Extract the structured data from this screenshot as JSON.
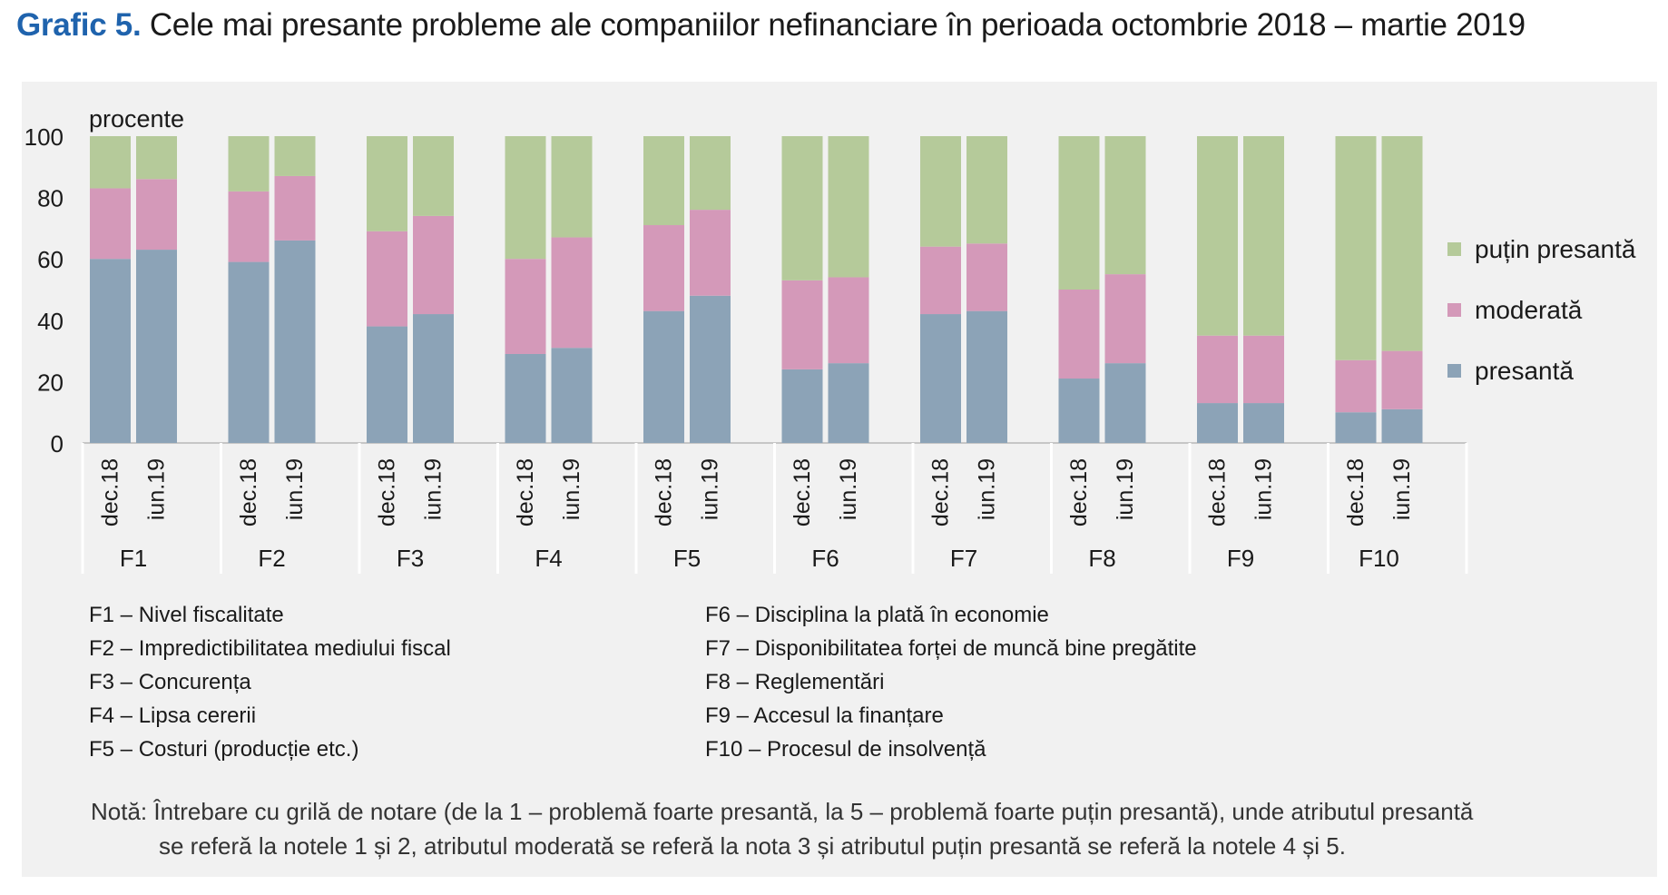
{
  "title": {
    "label": "Grafic 5.",
    "text": "Cele mai presante probleme ale companiilor nefinanciare în perioada octombrie 2018 – martie 2019"
  },
  "colors": {
    "presanta": "#8ca3b7",
    "moderata": "#d499b9",
    "putin_presanta": "#b5ca9a",
    "panel_bg": "#f1f1f1",
    "title_accent": "#1f63ad"
  },
  "chart_data": {
    "type": "bar",
    "stacked": true,
    "ylabel": "procente",
    "ylim": [
      0,
      100
    ],
    "yticks": [
      0,
      20,
      40,
      60,
      80,
      100
    ],
    "groups": [
      "F1",
      "F2",
      "F3",
      "F4",
      "F5",
      "F6",
      "F7",
      "F8",
      "F9",
      "F10"
    ],
    "periods": [
      "dec.18",
      "iun.19"
    ],
    "series": [
      {
        "name": "presantă",
        "values": [
          [
            60,
            63
          ],
          [
            59,
            66
          ],
          [
            38,
            42
          ],
          [
            29,
            31
          ],
          [
            43,
            48
          ],
          [
            24,
            26
          ],
          [
            42,
            43
          ],
          [
            21,
            26
          ],
          [
            13,
            13
          ],
          [
            10,
            11
          ]
        ]
      },
      {
        "name": "moderată",
        "values": [
          [
            23,
            23
          ],
          [
            23,
            21
          ],
          [
            31,
            32
          ],
          [
            31,
            36
          ],
          [
            28,
            28
          ],
          [
            29,
            28
          ],
          [
            22,
            22
          ],
          [
            29,
            29
          ],
          [
            22,
            22
          ],
          [
            17,
            19
          ]
        ]
      },
      {
        "name": "puțin presantă",
        "values": [
          [
            17,
            14
          ],
          [
            18,
            13
          ],
          [
            31,
            26
          ],
          [
            40,
            33
          ],
          [
            29,
            24
          ],
          [
            47,
            46
          ],
          [
            36,
            35
          ],
          [
            50,
            45
          ],
          [
            65,
            65
          ],
          [
            73,
            70
          ]
        ]
      }
    ],
    "legend_position": "right",
    "legend": [
      "puțin presantă",
      "moderată",
      "presantă"
    ]
  },
  "factors": [
    {
      "code": "F1",
      "text": "Nivel fiscalitate"
    },
    {
      "code": "F2",
      "text": "Impredictibilitatea mediului fiscal"
    },
    {
      "code": "F3",
      "text": "Concurența"
    },
    {
      "code": "F4",
      "text": "Lipsa cererii"
    },
    {
      "code": "F5",
      "text": "Costuri (producție etc.)"
    },
    {
      "code": "F6",
      "text": "Disciplina la plată în economie"
    },
    {
      "code": "F7",
      "text": "Disponibilitatea forței de muncă bine pregătite"
    },
    {
      "code": "F8",
      "text": "Reglementări"
    },
    {
      "code": "F9",
      "text": "Accesul la finanțare"
    },
    {
      "code": "F10",
      "text": "Procesul de insolvență"
    }
  ],
  "factor_separator": " – ",
  "note": {
    "line1": "Notă: Întrebare cu grilă de notare (de la 1 – problemă foarte presantă, la 5 – problemă foarte puțin presantă), unde atributul presantă",
    "line2": "se referă la notele 1 și 2, atributul moderată se referă la nota 3 și atributul puțin presantă se referă la notele 4 și 5."
  }
}
